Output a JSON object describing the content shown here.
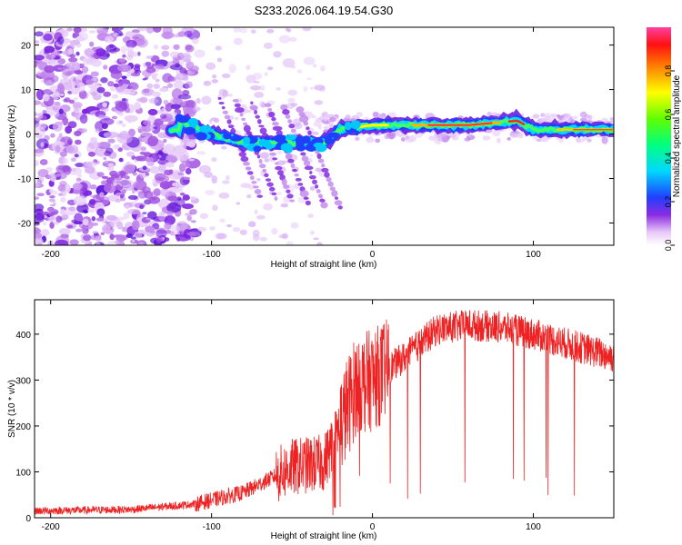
{
  "title": "S233.2026.064.19.54.G30",
  "colors": {
    "line": "#ee2222",
    "axis": "#000000",
    "blob": "#8a2be2"
  },
  "chart_data": [
    {
      "type": "heatmap",
      "name": "spectrogram",
      "xlabel": "Height of straight line (km)",
      "ylabel": "Frequency (Hz)",
      "xlim": [
        -210,
        150
      ],
      "ylim": [
        -25,
        24
      ],
      "xticks": [
        -200,
        -100,
        0,
        100
      ],
      "yticks": [
        -20,
        -10,
        0,
        10,
        20
      ],
      "colorbar": {
        "label": "Normalized spectral amplitude",
        "range": [
          0,
          1
        ],
        "ticks": [
          "0.0",
          "0.2",
          "0.4",
          "0.6",
          "0.8"
        ],
        "tick_values": [
          0,
          0.2,
          0.4,
          0.6,
          0.8
        ]
      },
      "ridge": {
        "description_points": [
          {
            "x": -120,
            "y": 3
          },
          {
            "x": -100,
            "y": 0
          },
          {
            "x": -80,
            "y": -2
          },
          {
            "x": -50,
            "y": -2
          },
          {
            "x": -30,
            "y": -2
          },
          {
            "x": -20,
            "y": 1
          },
          {
            "x": 0,
            "y": 2
          },
          {
            "x": 20,
            "y": 2
          },
          {
            "x": 60,
            "y": 2
          },
          {
            "x": 90,
            "y": 3
          },
          {
            "x": 100,
            "y": 1
          },
          {
            "x": 150,
            "y": 1
          }
        ]
      }
    },
    {
      "type": "line",
      "name": "snr",
      "xlabel": "Height of straight line (km)",
      "ylabel": "SNR (10 * v/v)",
      "xlim": [
        -210,
        150
      ],
      "ylim": [
        0,
        475
      ],
      "xticks": [
        -200,
        -100,
        0,
        100
      ],
      "yticks": [
        0,
        100,
        200,
        300,
        400
      ],
      "trend": [
        {
          "x": -210,
          "y": 15
        },
        {
          "x": -150,
          "y": 18
        },
        {
          "x": -110,
          "y": 30
        },
        {
          "x": -80,
          "y": 55
        },
        {
          "x": -50,
          "y": 110
        },
        {
          "x": -30,
          "y": 120
        },
        {
          "x": -20,
          "y": 200
        },
        {
          "x": -10,
          "y": 290
        },
        {
          "x": 0,
          "y": 300
        },
        {
          "x": 20,
          "y": 350
        },
        {
          "x": 40,
          "y": 410
        },
        {
          "x": 60,
          "y": 420
        },
        {
          "x": 80,
          "y": 415
        },
        {
          "x": 100,
          "y": 400
        },
        {
          "x": 120,
          "y": 380
        },
        {
          "x": 140,
          "y": 360
        },
        {
          "x": 150,
          "y": 350
        }
      ]
    }
  ]
}
